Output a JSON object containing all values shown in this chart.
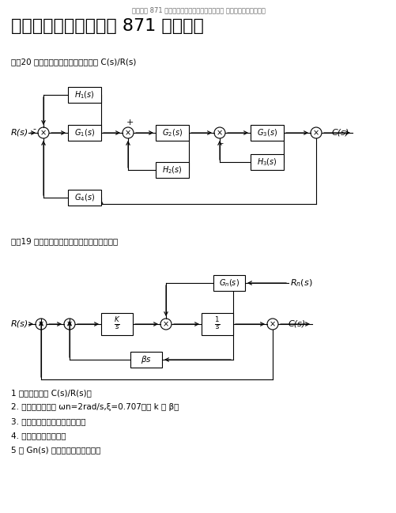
{
  "bg_color": "#ffffff",
  "header_text": "需要川大 871 自控真题、期末试卷等考研资料扣 二六七九七三一六三四",
  "title": "四川大学自动控制原理 871 考研真题",
  "q1_label": "一（20 年第一题）使用结构图化简求 C(s)/R(s)",
  "q2_label": "二（19 年第二题）系统结构图如图所示，求：",
  "q2_items": [
    "1 闭环传递函数 C(s)/R(s)；",
    "2. 已知二阶系统的 ωn=2rad/s,ξ=0.707，求 k 与 β。",
    "3. 此时的超调量以及调节时间。",
    "4. 求系统的稳态误差。",
    "5 求 Gn(s) 使于扰对输出无影响。"
  ]
}
